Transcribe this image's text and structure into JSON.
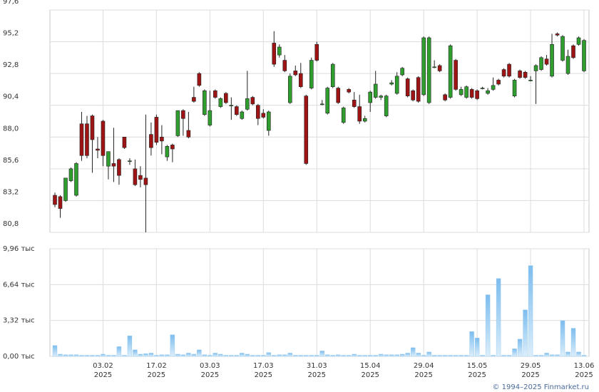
{
  "chart_data": {
    "type": "candlestick",
    "categories": [
      null,
      null,
      null,
      null,
      null,
      null,
      null,
      null,
      null,
      "03.02",
      null,
      null,
      null,
      null,
      null,
      null,
      null,
      null,
      null,
      "17.02",
      null,
      null,
      null,
      null,
      null,
      null,
      null,
      null,
      null,
      "03.03",
      null,
      null,
      null,
      null,
      null,
      null,
      null,
      null,
      null,
      "17.03",
      null,
      null,
      null,
      null,
      null,
      null,
      null,
      null,
      null,
      "31.03",
      null,
      null,
      null,
      null,
      null,
      null,
      null,
      null,
      null,
      "15.04",
      null,
      null,
      null,
      null,
      null,
      null,
      null,
      null,
      null,
      "29.04",
      null,
      null,
      null,
      null,
      null,
      null,
      null,
      null,
      null,
      "15.05",
      null,
      null,
      null,
      null,
      null,
      null,
      null,
      null,
      null,
      "29.05",
      null,
      null,
      null,
      null,
      null,
      null,
      null,
      null,
      null,
      "13.06"
    ],
    "x_sublabel": "2025",
    "open": [
      83.6,
      83.5,
      83.2,
      84.7,
      83.6,
      89.0,
      89.0,
      89.6,
      87.1,
      89.2,
      85.8,
      86.0,
      86.3,
      88.0,
      86.2,
      85.6,
      85.1,
      84.9,
      88.2,
      89.5,
      88.0,
      86.5,
      87.4,
      88.1,
      90.0,
      88.5,
      91.0,
      92.8,
      89.7,
      88.9,
      91.5,
      90.3,
      91.3,
      90.4,
      90.3,
      89.4,
      90.1,
      91.0,
      90.4,
      89.8,
      88.5,
      95.1,
      94.2,
      93.8,
      90.6,
      93.0,
      92.8,
      91.1,
      91.7,
      95.0,
      90.5,
      89.8,
      91.8,
      91.7,
      89.1,
      91.6,
      90.8,
      90.3,
      89.2,
      90.6,
      91.0,
      91.0,
      89.6,
      92.0,
      91.3,
      92.7,
      92.4,
      91.5,
      92.5,
      91.2,
      90.6,
      93.3,
      93.4,
      91.2,
      91.0,
      93.8,
      91.2,
      91.0,
      91.6,
      91.5,
      91.7,
      91.3,
      91.6,
      92.3,
      93.1,
      93.5,
      91.1,
      93.0,
      92.9,
      92.3,
      93.0,
      93.1,
      93.9,
      92.6,
      95.8,
      93.8,
      92.8,
      94.9,
      95.0,
      93.0
    ],
    "high": [
      83.8,
      83.6,
      84.9,
      85.7,
      86.1,
      89.9,
      89.6,
      89.7,
      88.0,
      89.3,
      86.9,
      88.7,
      86.4,
      88.0,
      86.4,
      86.3,
      85.8,
      89.7,
      89.1,
      89.7,
      88.9,
      87.4,
      87.5,
      90.0,
      90.1,
      89.9,
      91.8,
      92.9,
      91.6,
      91.5,
      91.6,
      91.0,
      91.4,
      91.0,
      90.4,
      90.0,
      93.0,
      91.1,
      90.5,
      90.1,
      90.0,
      96.0,
      95.0,
      94.2,
      92.8,
      93.4,
      93.6,
      91.2,
      94.0,
      95.2,
      90.8,
      91.8,
      93.6,
      91.8,
      90.3,
      91.7,
      91.4,
      91.2,
      89.6,
      91.5,
      93.0,
      91.2,
      91.2,
      92.3,
      92.9,
      93.3,
      92.5,
      91.6,
      92.6,
      95.6,
      95.6,
      93.8,
      93.5,
      91.3,
      95.0,
      93.9,
      91.8,
      91.9,
      91.7,
      91.6,
      91.8,
      91.7,
      92.5,
      92.4,
      93.2,
      93.6,
      92.4,
      93.1,
      93.0,
      92.6,
      93.5,
      94.1,
      94.2,
      95.8,
      95.9,
      95.7,
      94.6,
      95.0,
      95.6,
      95.4
    ],
    "low": [
      82.7,
      81.9,
      83.1,
      84.6,
      83.5,
      86.2,
      86.4,
      85.3,
      86.4,
      85.8,
      84.8,
      84.6,
      84.4,
      87.1,
      85.9,
      84.3,
      84.2,
      80.8,
      86.6,
      87.4,
      86.7,
      86.2,
      86.1,
      88.0,
      88.1,
      87.9,
      90.6,
      91.8,
      89.6,
      88.8,
      90.9,
      90.2,
      90.5,
      89.3,
      89.6,
      89.3,
      90.0,
      90.4,
      88.9,
      89.4,
      88.1,
      93.3,
      94.0,
      92.9,
      90.5,
      92.6,
      91.7,
      85.9,
      91.6,
      93.7,
      90.4,
      89.7,
      91.7,
      90.5,
      89.0,
      91.3,
      90.2,
      89.0,
      89.1,
      89.9,
      90.9,
      90.8,
      89.5,
      91.9,
      91.2,
      92.6,
      91.0,
      90.7,
      90.6,
      91.1,
      90.5,
      93.2,
      92.9,
      90.7,
      90.9,
      91.5,
      91.1,
      90.9,
      90.9,
      90.8,
      91.6,
      91.2,
      91.5,
      91.9,
      92.5,
      92.5,
      91.0,
      92.4,
      92.4,
      92.2,
      90.5,
      93.0,
      93.4,
      92.5,
      95.6,
      93.7,
      92.7,
      93.9,
      94.9,
      92.9
    ],
    "close": [
      82.9,
      82.6,
      84.9,
      85.6,
      86.0,
      86.6,
      86.6,
      87.8,
      87.0,
      86.6,
      86.9,
      85.8,
      85.1,
      87.2,
      86.2,
      84.4,
      84.8,
      84.4,
      87.2,
      87.6,
      87.7,
      87.3,
      87.1,
      90.0,
      89.4,
      88.0,
      90.7,
      91.9,
      91.5,
      90.0,
      91.0,
      90.9,
      90.6,
      90.4,
      89.7,
      89.9,
      90.9,
      90.5,
      89.4,
      89.5,
      89.9,
      93.5,
      94.8,
      93.0,
      92.6,
      92.7,
      91.8,
      86.0,
      93.8,
      93.8,
      90.5,
      91.7,
      93.5,
      90.6,
      90.2,
      91.4,
      90.3,
      89.2,
      89.4,
      91.4,
      92.0,
      91.1,
      91.1,
      92.1,
      92.6,
      93.2,
      91.1,
      90.8,
      90.7,
      95.5,
      95.5,
      93.3,
      93.0,
      90.8,
      94.9,
      91.6,
      91.6,
      91.8,
      91.0,
      90.9,
      91.7,
      91.5,
      91.9,
      92.0,
      92.6,
      92.6,
      92.3,
      92.5,
      92.5,
      92.3,
      93.4,
      94.0,
      93.5,
      95.0,
      95.7,
      95.6,
      94.1,
      94.0,
      95.5,
      95.3
    ],
    "up_color": "#2f9e2f",
    "down_color": "#9e1414",
    "ylim": [
      80.8,
      97.6
    ],
    "yticks": [
      {
        "value": 80.8,
        "label": "80,8"
      },
      {
        "value": 83.2,
        "label": "83,2"
      },
      {
        "value": 85.6,
        "label": "85,6"
      },
      {
        "value": 88.0,
        "label": "88,0"
      },
      {
        "value": 90.4,
        "label": "90,4"
      },
      {
        "value": 92.8,
        "label": "92,8"
      },
      {
        "value": 95.2,
        "label": "95,2"
      },
      {
        "value": 97.6,
        "label": "97,6"
      }
    ],
    "grid": true,
    "volume": {
      "color": "#8cc6f0",
      "values": [
        1.0,
        0.2,
        0.15,
        0.15,
        0.15,
        0.1,
        0.1,
        0.1,
        0.1,
        0.2,
        0.1,
        0.1,
        0.9,
        0.1,
        1.9,
        0.6,
        0.2,
        0.25,
        0.3,
        0.1,
        0.15,
        0.15,
        2.0,
        0.2,
        0.15,
        0.3,
        0.2,
        0.6,
        0.15,
        0.1,
        0.3,
        0.2,
        0.1,
        0.1,
        0.1,
        0.3,
        0.2,
        0.1,
        0.1,
        0.1,
        0.35,
        0.1,
        0.15,
        0.15,
        0.3,
        0.1,
        0.1,
        0.1,
        0.1,
        0.1,
        0.5,
        0.15,
        0.1,
        0.15,
        0.1,
        0.1,
        0.2,
        0.1,
        0.1,
        0.1,
        0.1,
        0.2,
        0.15,
        0.15,
        0.15,
        0.2,
        0.3,
        0.8,
        0.3,
        0.1,
        0.4,
        0.1,
        0.1,
        0.1,
        0.1,
        0.1,
        0.1,
        0.1,
        2.3,
        1.7,
        0.1,
        5.7,
        0.1,
        7.2,
        0.1,
        0.1,
        0.7,
        1.6,
        4.3,
        8.4,
        0.1,
        0.1,
        0.3,
        0.15,
        0.15,
        3.3,
        0.4,
        2.6,
        0.4,
        0.1
      ],
      "ylim": [
        0,
        9.96
      ],
      "yticks": [
        {
          "value": 0,
          "label": "0,00 тыс"
        },
        {
          "value": 3.32,
          "label": "3,32 тыс"
        },
        {
          "value": 6.64,
          "label": "6,64 тыс"
        },
        {
          "value": 9.96,
          "label": "9,96 тыс"
        }
      ]
    },
    "footer": "© 1994–2025 Finmarket.ru"
  }
}
